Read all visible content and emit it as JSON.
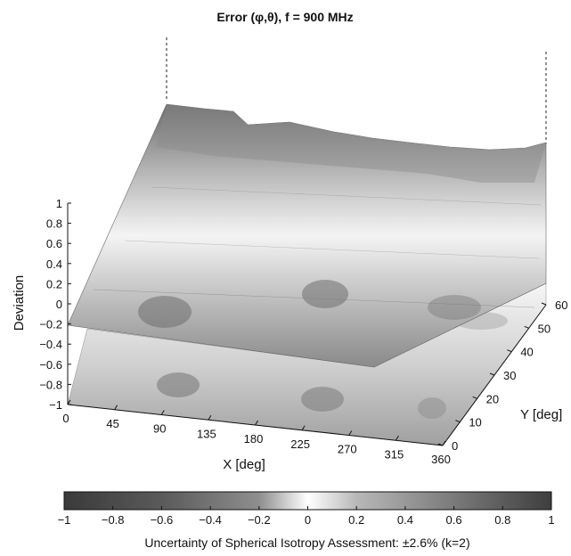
{
  "chart_data": {
    "type": "surface3d",
    "title": "Error (φ,θ), f = 900 MHz",
    "xlabel": "X [deg]",
    "ylabel": "Y [deg]",
    "zlabel": "Deviation",
    "x_ticks": [
      "0",
      "45",
      "90",
      "135",
      "180",
      "225",
      "270",
      "315",
      "360"
    ],
    "y_ticks": [
      "0",
      "10",
      "20",
      "30",
      "40",
      "50",
      "60"
    ],
    "z_ticks": [
      "1",
      "0.8",
      "0.6",
      "0.4",
      "0.2",
      "0",
      "−0.2",
      "−0.4",
      "−0.6",
      "−0.8",
      "−1"
    ],
    "xlim": [
      0,
      360
    ],
    "ylim": [
      0,
      60
    ],
    "zlim": [
      -1,
      1
    ],
    "colormap": "gray",
    "colorbar": {
      "ticks": [
        "−1",
        "−0.8",
        "−0.6",
        "−0.4",
        "−0.2",
        "0",
        "0.2",
        "0.4",
        "0.6",
        "0.8",
        "1"
      ],
      "range": [
        -1,
        1
      ]
    },
    "caption": "Uncertainty of Spherical Isotropy Assessment: ±2.6% (k=2)"
  }
}
